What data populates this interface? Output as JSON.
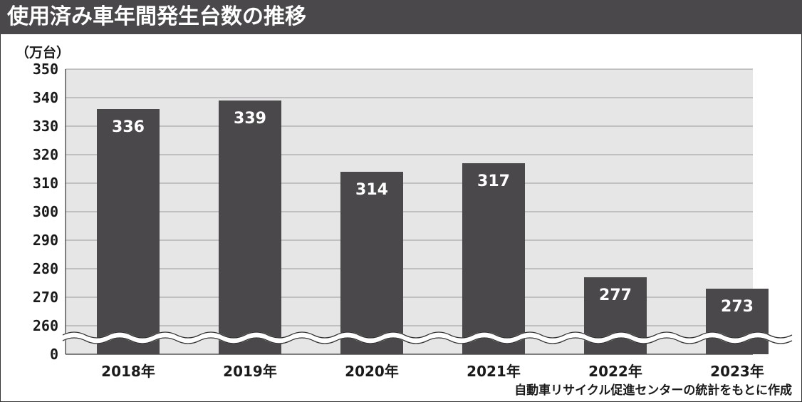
{
  "chart_data": {
    "type": "bar",
    "title": "使用済み車年間発生台数の推移",
    "unit_label": "（万台）",
    "categories": [
      "2018年",
      "2019年",
      "2020年",
      "2021年",
      "2022年",
      "2023年"
    ],
    "values": [
      336,
      339,
      314,
      317,
      277,
      273
    ],
    "value_labels": [
      "336",
      "339",
      "314",
      "317",
      "277",
      "273"
    ],
    "ylim": [
      260,
      350
    ],
    "yticks": [
      "350",
      "340",
      "330",
      "320",
      "310",
      "300",
      "290",
      "280",
      "270",
      "260",
      "0"
    ],
    "axis_break": true,
    "grid": true,
    "source": "自動車リサイクル促進センターの統計をもとに作成",
    "colors": {
      "bar": "#4a484b",
      "plot_bg": "#e6e6e6",
      "header_bg": "#4a484b",
      "grid": "#9a9a9a"
    }
  }
}
